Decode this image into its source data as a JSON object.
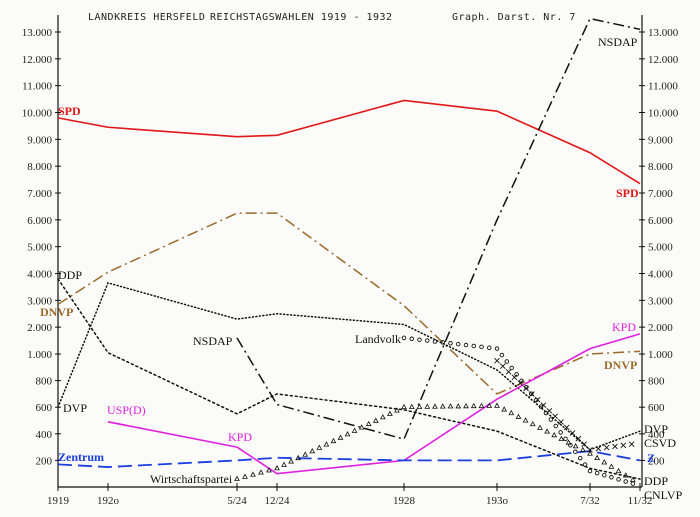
{
  "header": {
    "left": "LANDKREIS HERSFELD",
    "title": "REICHSTAGSWAHLEN 1919 - 1932",
    "right": "Graph. Darst. Nr. 7"
  },
  "chart_data": {
    "type": "line",
    "title": "LANDKREIS HERSFELD REICHSTAGSWAHLEN 1919 - 1932",
    "subtitle": "Graph. Darst. Nr. 7",
    "x": [
      "1919",
      "1920",
      "5/24",
      "12/24",
      "1928",
      "1930",
      "7/32",
      "11/32"
    ],
    "y_ticks_left": [
      "200",
      "400",
      "600",
      "800",
      "1.000",
      "2.000",
      "3.000",
      "4.000",
      "5.000",
      "6.000",
      "7.000",
      "8.000",
      "9.000",
      "10.000",
      "11.000",
      "12.000",
      "13.000"
    ],
    "y_ticks_right": [
      "200",
      "400",
      "600",
      "800",
      "1.000",
      "2.000",
      "3.000",
      "4.000",
      "5.000",
      "6.000",
      "7.000",
      "8.000",
      "9.000",
      "10.000",
      "11.000",
      "12.000",
      "13.000"
    ],
    "y_scale": "piecewise: 0-1000 expanded, 1000-13000 linear",
    "grid": false,
    "legend": "inline labels",
    "series": [
      {
        "name": "SPD",
        "color": "#e01818",
        "style": "solid",
        "x": [
          "1919",
          "1920",
          "5/24",
          "12/24",
          "1928",
          "1930",
          "7/32",
          "11/32"
        ],
        "values": [
          9800,
          9450,
          9100,
          9150,
          10450,
          10050,
          8500,
          7350
        ]
      },
      {
        "name": "DNVP",
        "color": "#9c6a2c",
        "style": "dashdot",
        "x": [
          "1919",
          "1920",
          "5/24",
          "12/24",
          "1928",
          "1930",
          "7/32",
          "11/32"
        ],
        "values": [
          2850,
          4050,
          6250,
          6250,
          2800,
          700,
          1000,
          1100
        ]
      },
      {
        "name": "DDP",
        "color": "#111111",
        "style": "dotted",
        "x": [
          "1919",
          "1920",
          "5/24",
          "12/24",
          "1928",
          "1930",
          "7/32",
          "11/32"
        ],
        "values": [
          3800,
          1050,
          550,
          700,
          580,
          420,
          140,
          60
        ]
      },
      {
        "name": "DVP",
        "color": "#111111",
        "style": "fine-dotted",
        "x": [
          "1919",
          "1920",
          "5/24",
          "12/24",
          "1928",
          "1930",
          "7/32",
          "11/32"
        ],
        "values": [
          600,
          3650,
          2300,
          2500,
          2100,
          880,
          280,
          420
        ]
      },
      {
        "name": "USP(D)",
        "color": "#e020e0",
        "style": "solid",
        "x": [
          "1920",
          "5/24"
        ],
        "values": [
          490,
          300
        ]
      },
      {
        "name": "KPD",
        "color": "#e020e0",
        "style": "solid",
        "x": [
          "5/24",
          "12/24",
          "1928",
          "1930",
          "7/32",
          "11/32"
        ],
        "values": [
          300,
          100,
          200,
          660,
          1200,
          1750
        ]
      },
      {
        "name": "Zentrum",
        "color": "#1a3ee0",
        "style": "dashed",
        "x": [
          "1919",
          "1920",
          "5/24",
          "12/24",
          "1928",
          "1930",
          "7/32",
          "11/32"
        ],
        "values": [
          170,
          150,
          200,
          220,
          200,
          200,
          270,
          200
        ]
      },
      {
        "name": "NSDAP",
        "color": "#111111",
        "style": "dashdot",
        "x": [
          "5/24",
          "12/24",
          "1928",
          "1930",
          "7/32",
          "11/32"
        ],
        "values": [
          1600,
          620,
          360,
          6000,
          13500,
          13100
        ]
      },
      {
        "name": "Landvolk",
        "color": "#111111",
        "style": "circles",
        "x": [
          "1928",
          "1930",
          "7/32",
          "11/32"
        ],
        "values": [
          1600,
          1200,
          120,
          10
        ]
      },
      {
        "name": "CSVD",
        "color": "#111111",
        "style": "crosses",
        "x": [
          "1930",
          "7/32",
          "11/32"
        ],
        "values": [
          950,
          280,
          330
        ]
      },
      {
        "name": "Wirtschaftspartei",
        "color": "#111111",
        "style": "triangles",
        "x": [
          "5/24",
          "12/24",
          "1928",
          "1930",
          "7/32",
          "11/32"
        ],
        "values": [
          60,
          140,
          600,
          610,
          250,
          20
        ]
      }
    ]
  },
  "labels": {
    "spd_left": "SPD",
    "spd_right": "SPD",
    "nsdap_top": "NSDAP",
    "nsdap_mid": "NSDAP",
    "ddp_left": "DDP",
    "dnvp_left": "DNVP",
    "dnvp_right": "DNVP",
    "dvp_left": "DVP",
    "usp": "USP(D)",
    "kpd_mid": "KPD",
    "kpd_right": "KPD",
    "landvolk": "Landvolk",
    "zentrum": "Zentrum",
    "wirtschaftspartei": "Wirtschaftspartei",
    "right_dvp": "DVP",
    "right_csvd": "CSVD",
    "right_z": "Z",
    "right_ddp": "DDP",
    "right_cnlvp": "CNLVP"
  },
  "x_axis_labels": [
    "1919",
    "192o",
    "5/24",
    "12/24",
    "1928",
    "193o",
    "7/32",
    "11/32"
  ]
}
